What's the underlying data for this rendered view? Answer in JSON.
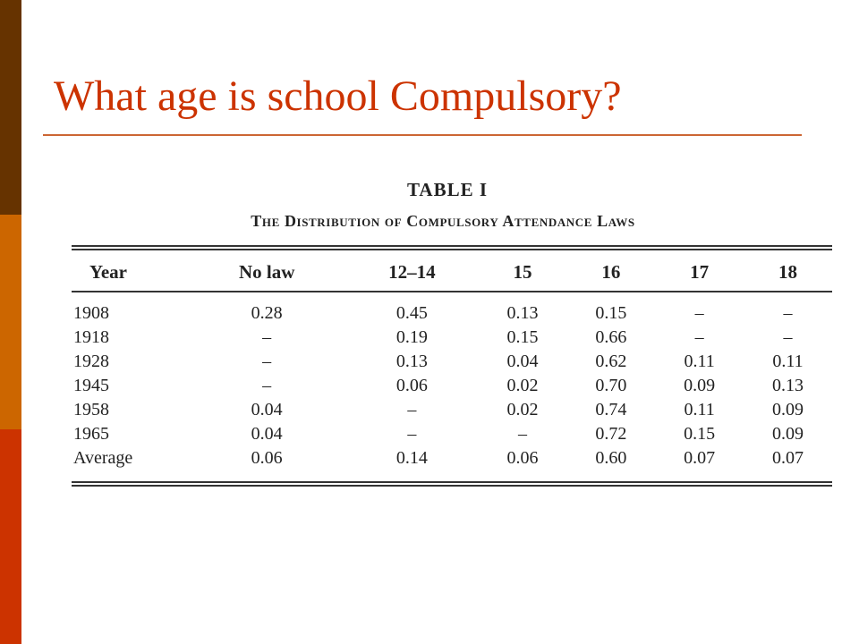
{
  "slide": {
    "title": "What age is school Compulsory?",
    "accent_colors": [
      "#663300",
      "#cc6600",
      "#cc3300"
    ]
  },
  "table": {
    "heading": "TABLE I",
    "caption": "The Distribution of Compulsory Attendance Laws",
    "columns": [
      "Year",
      "No law",
      "12–14",
      "15",
      "16",
      "17",
      "18"
    ],
    "rows": [
      [
        "1908",
        "0.28",
        "0.45",
        "0.13",
        "0.15",
        "–",
        "–"
      ],
      [
        "1918",
        "–",
        "0.19",
        "0.15",
        "0.66",
        "–",
        "–"
      ],
      [
        "1928",
        "–",
        "0.13",
        "0.04",
        "0.62",
        "0.11",
        "0.11"
      ],
      [
        "1945",
        "–",
        "0.06",
        "0.02",
        "0.70",
        "0.09",
        "0.13"
      ],
      [
        "1958",
        "0.04",
        "–",
        "0.02",
        "0.74",
        "0.11",
        "0.09"
      ],
      [
        "1965",
        "0.04",
        "–",
        "–",
        "0.72",
        "0.15",
        "0.09"
      ],
      [
        "Average",
        "0.06",
        "0.14",
        "0.06",
        "0.60",
        "0.07",
        "0.07"
      ]
    ]
  }
}
